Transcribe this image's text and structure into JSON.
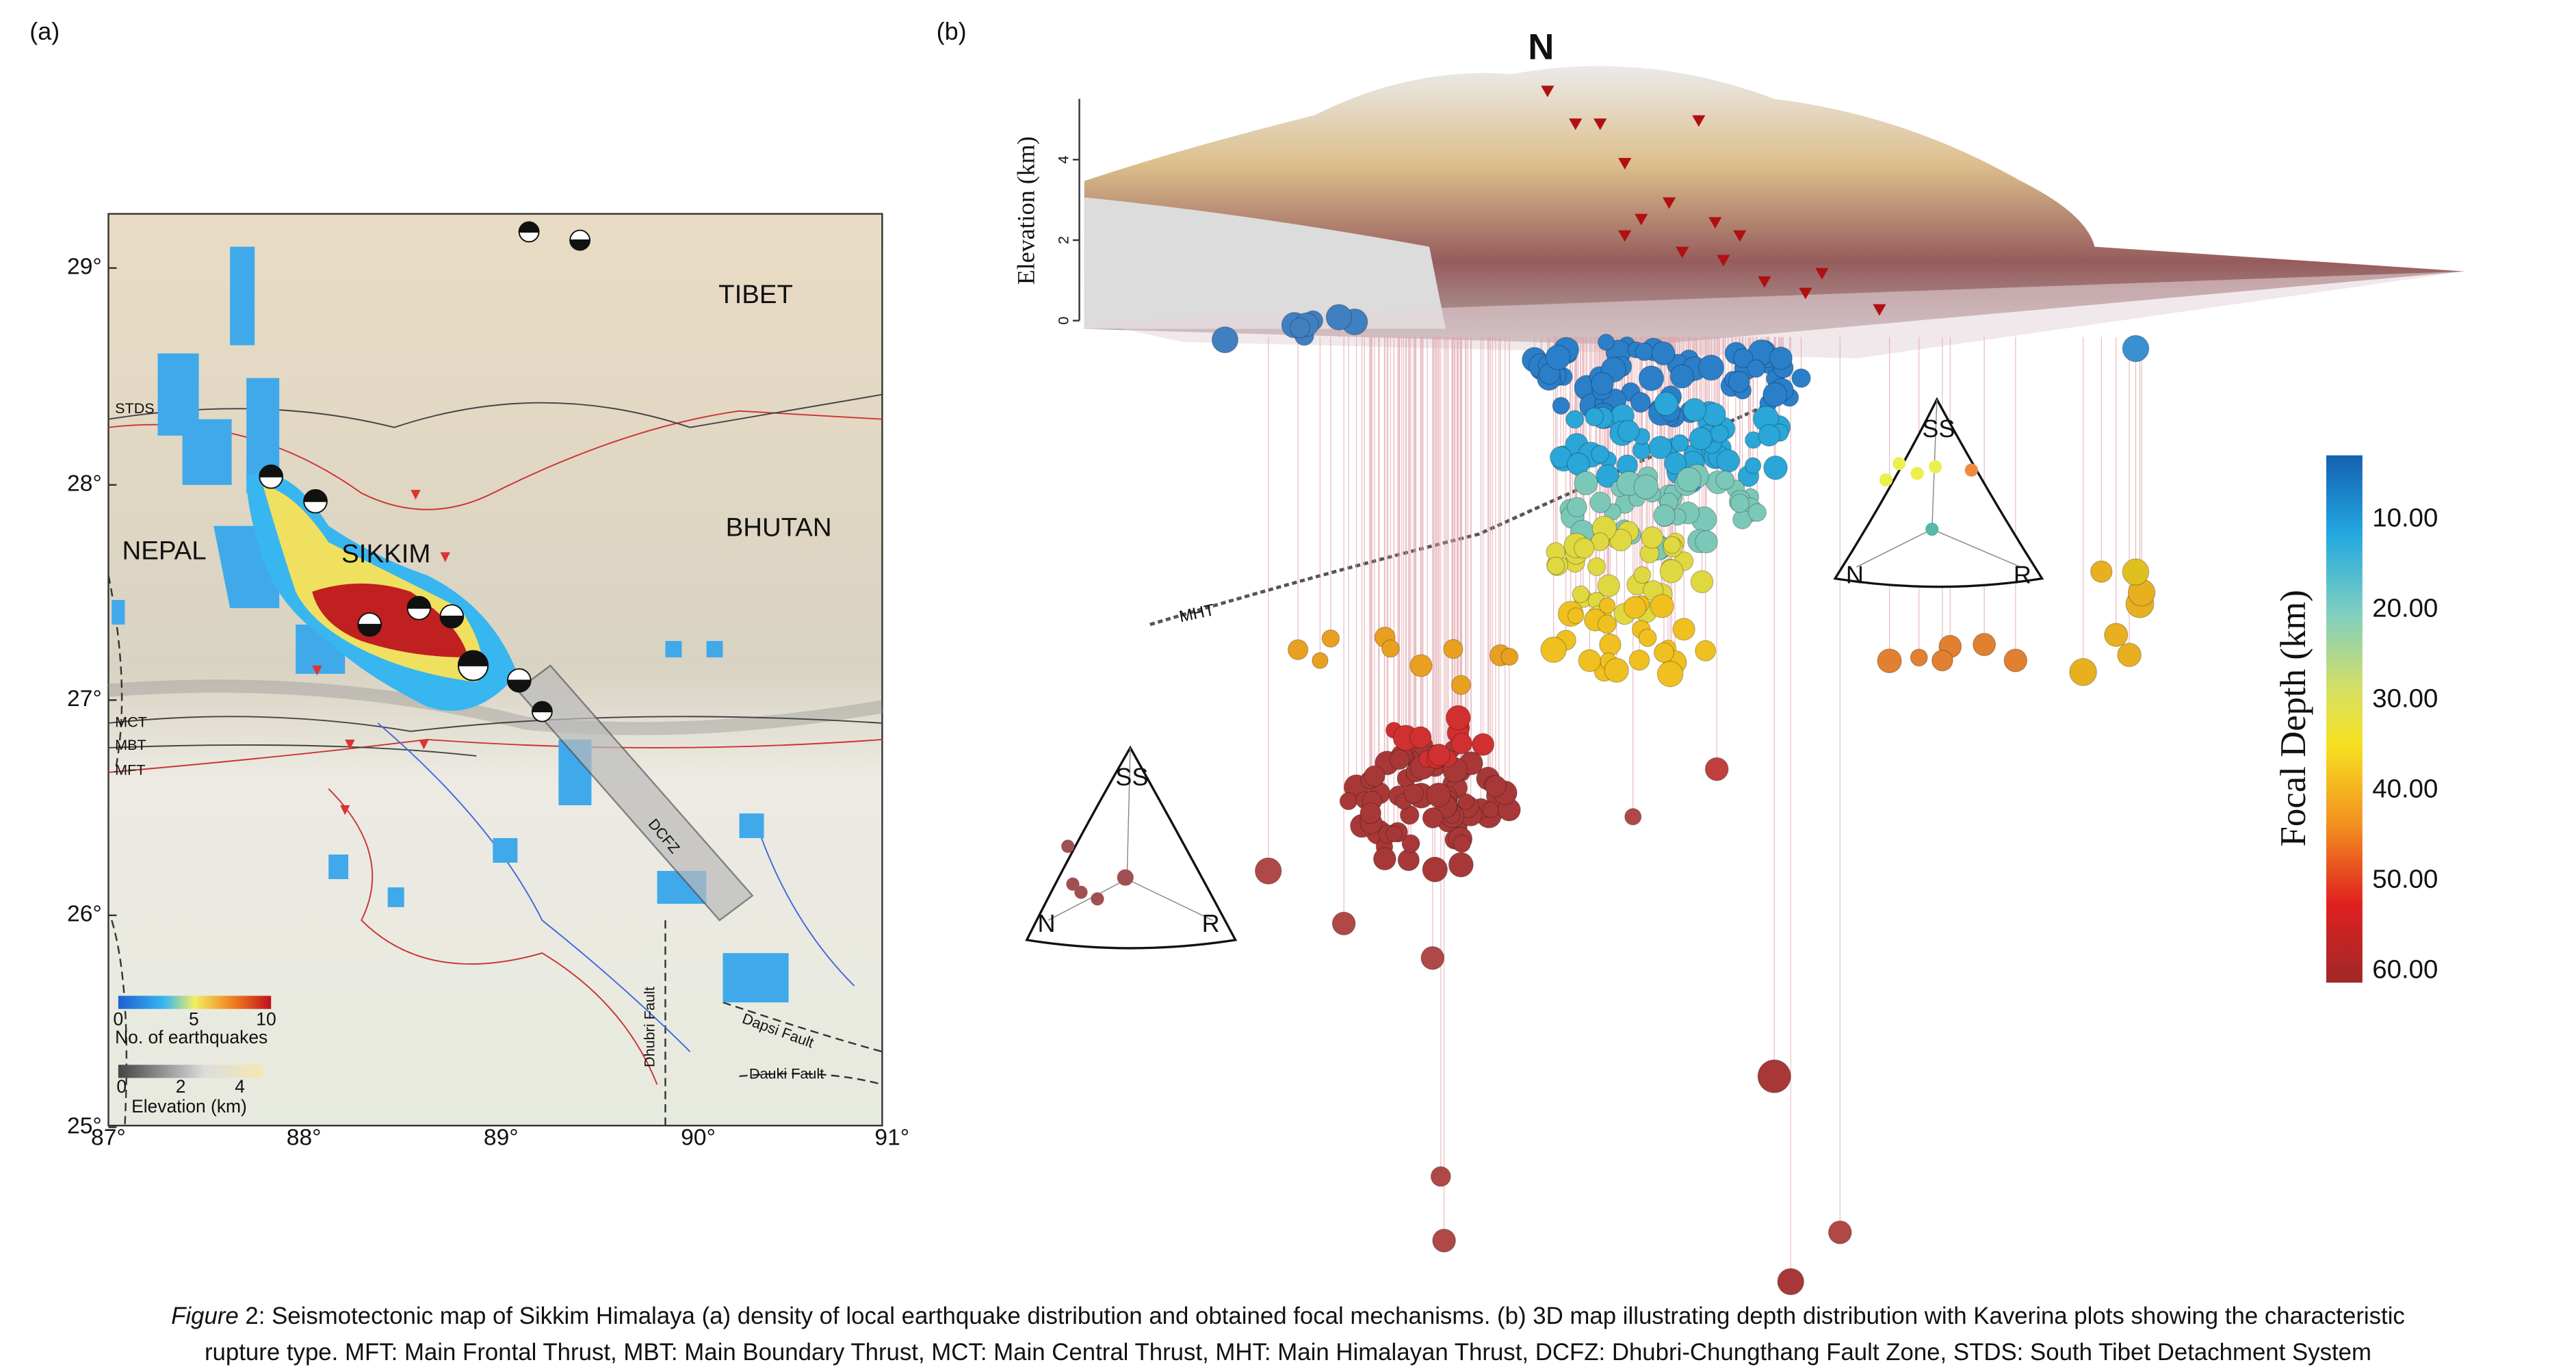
{
  "panel_a": {
    "label": "(a)",
    "places": {
      "tibet": "TIBET",
      "nepal": "NEPAL",
      "bhutan": "BHUTAN",
      "sikkim": "SIKKIM"
    },
    "faults": {
      "stds": "STDS",
      "mct": "MCT",
      "mbt": "MBT",
      "mft": "MFT",
      "dcfz": "DCFZ",
      "dhubri": "Dhubri Fault",
      "dapsi": "Dapsi Fault",
      "dauki": "Dauki Fault"
    },
    "lat_ticks": [
      "29°",
      "28°",
      "27°",
      "26°",
      "25°"
    ],
    "lon_ticks": [
      "87°",
      "88°",
      "89°",
      "90°",
      "91°"
    ],
    "count_legend": {
      "ticks": [
        "0",
        "5",
        "10"
      ],
      "title": "No. of earthquakes"
    },
    "elevation_legend": {
      "ticks": [
        "0",
        "2",
        "4"
      ],
      "title": "Elevation (km)"
    }
  },
  "panel_b": {
    "label": "(b)",
    "north": "N",
    "elevation_axis": {
      "title": "Elevation (km)",
      "ticks": [
        "0",
        "2",
        "4"
      ]
    },
    "mht": "MHT",
    "kaverina_shallow": {
      "ss": "SS",
      "n": "N",
      "r": "R"
    },
    "kaverina_deep": {
      "ss": "SS",
      "n": "N",
      "r": "R"
    },
    "depth_colorbar": {
      "title": "Focal Depth (km)",
      "ticks": [
        "10.00",
        "20.00",
        "30.00",
        "40.00",
        "50.00",
        "60.00"
      ]
    }
  },
  "caption": {
    "label": "Figure",
    "line1": "2: Seismotectonic map of Sikkim Himalaya (a) density of local earthquake distribution and obtained focal mechanisms. (b) 3D map illustrating depth distribution with Kaverina plots showing the characteristic",
    "line2": "rupture type. MFT: Main Frontal Thrust, MBT: Main Boundary Thrust, MCT: Main Central Thrust, MHT: Main Himalayan Thrust, DCFZ: Dhubri-Chungthang Fault Zone, STDS: South Tibet Detachment System"
  }
}
